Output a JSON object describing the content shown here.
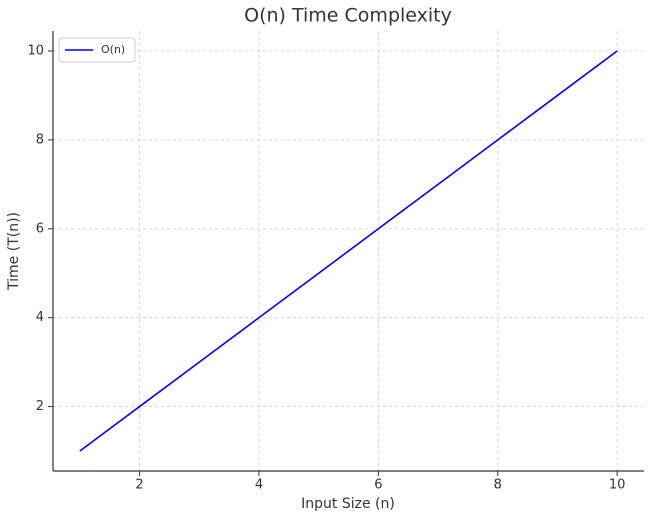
{
  "chart_data": {
    "type": "line",
    "title": "O(n) Time Complexity",
    "x_label": "Input Size (n)",
    "y_label": "Time (T(n))",
    "x": [
      1,
      2,
      3,
      4,
      5,
      6,
      7,
      8,
      9,
      10
    ],
    "series": [
      {
        "name": "O(n)",
        "color": "#0000ff",
        "values": [
          1,
          2,
          3,
          4,
          5,
          6,
          7,
          8,
          9,
          10
        ]
      }
    ],
    "xlim": [
      0.55,
      10.45
    ],
    "ylim": [
      0.55,
      10.45
    ],
    "xticks": [
      2,
      4,
      6,
      8,
      10
    ],
    "yticks": [
      2,
      4,
      6,
      8,
      10
    ],
    "grid": true,
    "legend": "upper left"
  }
}
